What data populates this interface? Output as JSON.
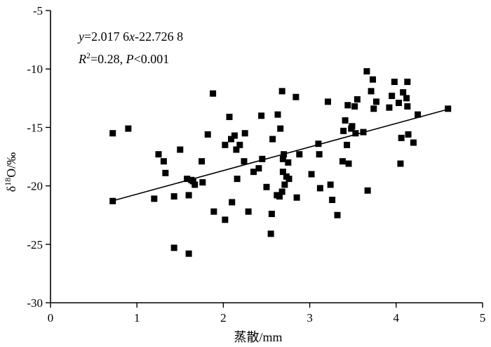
{
  "chart_data": {
    "type": "scatter",
    "xlabel": "蒸散/mm",
    "ylabel": "δ18O/‰",
    "xlim": [
      0,
      5
    ],
    "ylim": [
      -30,
      -5
    ],
    "xticks": [
      0,
      1,
      2,
      3,
      4,
      5
    ],
    "yticks": [
      -5,
      -10,
      -15,
      -20,
      -25,
      -30
    ],
    "grid": false,
    "annotation": {
      "equation": "y=2.017 6x-22.726 8",
      "r2_text": "R²=0.28, P<0.001"
    },
    "fit_line": {
      "slope": 2.0176,
      "intercept": -22.7268,
      "x_range": [
        0.7,
        4.6
      ]
    },
    "points": [
      {
        "x": 0.72,
        "y": -15.5
      },
      {
        "x": 0.72,
        "y": -21.3
      },
      {
        "x": 0.9,
        "y": -15.1
      },
      {
        "x": 1.2,
        "y": -21.1
      },
      {
        "x": 1.25,
        "y": -17.3
      },
      {
        "x": 1.31,
        "y": -17.9
      },
      {
        "x": 1.33,
        "y": -18.9
      },
      {
        "x": 1.43,
        "y": -20.9
      },
      {
        "x": 1.43,
        "y": -25.3
      },
      {
        "x": 1.5,
        "y": -16.9
      },
      {
        "x": 1.58,
        "y": -19.4
      },
      {
        "x": 1.6,
        "y": -25.8
      },
      {
        "x": 1.6,
        "y": -20.8
      },
      {
        "x": 1.63,
        "y": -19.5
      },
      {
        "x": 1.65,
        "y": -19.6
      },
      {
        "x": 1.67,
        "y": -19.9
      },
      {
        "x": 1.75,
        "y": -17.9
      },
      {
        "x": 1.76,
        "y": -19.7
      },
      {
        "x": 1.82,
        "y": -15.6
      },
      {
        "x": 1.88,
        "y": -12.1
      },
      {
        "x": 1.89,
        "y": -22.2
      },
      {
        "x": 2.02,
        "y": -22.9
      },
      {
        "x": 2.02,
        "y": -16.5
      },
      {
        "x": 2.07,
        "y": -14.1
      },
      {
        "x": 2.09,
        "y": -16.0
      },
      {
        "x": 2.1,
        "y": -21.4
      },
      {
        "x": 2.13,
        "y": -15.7
      },
      {
        "x": 2.15,
        "y": -16.9
      },
      {
        "x": 2.16,
        "y": -19.4
      },
      {
        "x": 2.19,
        "y": -16.5
      },
      {
        "x": 2.24,
        "y": -17.9
      },
      {
        "x": 2.25,
        "y": -15.5
      },
      {
        "x": 2.29,
        "y": -22.2
      },
      {
        "x": 2.35,
        "y": -18.8
      },
      {
        "x": 2.41,
        "y": -18.5
      },
      {
        "x": 2.44,
        "y": -14.0
      },
      {
        "x": 2.45,
        "y": -17.7
      },
      {
        "x": 2.5,
        "y": -20.1
      },
      {
        "x": 2.55,
        "y": -24.1
      },
      {
        "x": 2.56,
        "y": -22.4
      },
      {
        "x": 2.57,
        "y": -16.0
      },
      {
        "x": 2.62,
        "y": -20.8
      },
      {
        "x": 2.63,
        "y": -13.9
      },
      {
        "x": 2.65,
        "y": -20.9
      },
      {
        "x": 2.66,
        "y": -15.1
      },
      {
        "x": 2.68,
        "y": -11.9
      },
      {
        "x": 2.68,
        "y": -20.5
      },
      {
        "x": 2.69,
        "y": -17.7
      },
      {
        "x": 2.69,
        "y": -18.8
      },
      {
        "x": 2.7,
        "y": -17.3
      },
      {
        "x": 2.71,
        "y": -19.9
      },
      {
        "x": 2.73,
        "y": -19.2
      },
      {
        "x": 2.75,
        "y": -18.0
      },
      {
        "x": 2.76,
        "y": -19.4
      },
      {
        "x": 2.84,
        "y": -12.4
      },
      {
        "x": 2.85,
        "y": -21.0
      },
      {
        "x": 2.88,
        "y": -17.3
      },
      {
        "x": 3.02,
        "y": -19.0
      },
      {
        "x": 3.1,
        "y": -16.4
      },
      {
        "x": 3.11,
        "y": -17.3
      },
      {
        "x": 3.12,
        "y": -20.2
      },
      {
        "x": 3.21,
        "y": -12.8
      },
      {
        "x": 3.24,
        "y": -19.9
      },
      {
        "x": 3.26,
        "y": -21.2
      },
      {
        "x": 3.32,
        "y": -22.5
      },
      {
        "x": 3.38,
        "y": -17.9
      },
      {
        "x": 3.39,
        "y": -15.3
      },
      {
        "x": 3.41,
        "y": -14.4
      },
      {
        "x": 3.43,
        "y": -16.5
      },
      {
        "x": 3.44,
        "y": -13.1
      },
      {
        "x": 3.45,
        "y": -18.1
      },
      {
        "x": 3.48,
        "y": -15.1
      },
      {
        "x": 3.49,
        "y": -14.9
      },
      {
        "x": 3.52,
        "y": -13.2
      },
      {
        "x": 3.53,
        "y": -15.5
      },
      {
        "x": 3.55,
        "y": -12.6
      },
      {
        "x": 3.62,
        "y": -15.4
      },
      {
        "x": 3.66,
        "y": -10.2
      },
      {
        "x": 3.67,
        "y": -20.4
      },
      {
        "x": 3.71,
        "y": -11.9
      },
      {
        "x": 3.73,
        "y": -10.9
      },
      {
        "x": 3.74,
        "y": -13.4
      },
      {
        "x": 3.77,
        "y": -12.8
      },
      {
        "x": 3.92,
        "y": -13.3
      },
      {
        "x": 3.95,
        "y": -12.3
      },
      {
        "x": 3.98,
        "y": -11.1
      },
      {
        "x": 4.03,
        "y": -12.9
      },
      {
        "x": 4.05,
        "y": -18.1
      },
      {
        "x": 4.06,
        "y": -15.9
      },
      {
        "x": 4.08,
        "y": -12.0
      },
      {
        "x": 4.12,
        "y": -12.5
      },
      {
        "x": 4.13,
        "y": -11.1
      },
      {
        "x": 4.13,
        "y": -13.2
      },
      {
        "x": 4.14,
        "y": -15.6
      },
      {
        "x": 4.2,
        "y": -16.3
      },
      {
        "x": 4.25,
        "y": -13.9
      },
      {
        "x": 4.6,
        "y": -13.4
      }
    ]
  }
}
